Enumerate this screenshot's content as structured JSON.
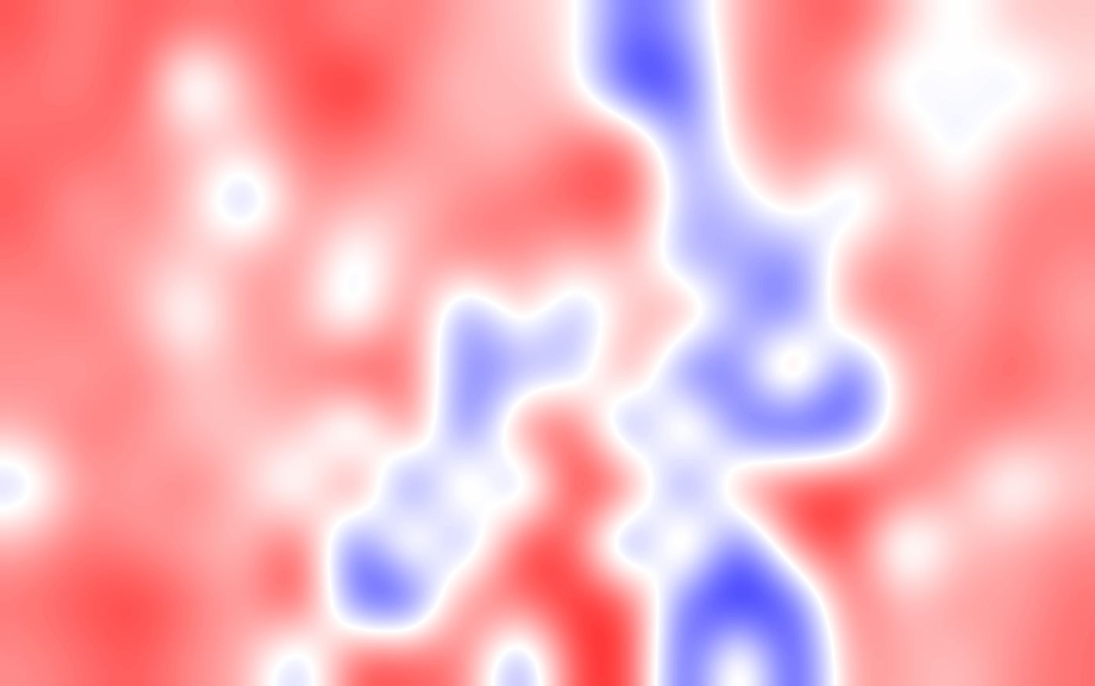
{
  "chart_data": {
    "type": "heatmap",
    "color": "bwr",
    "tick_labels": false,
    "cells": [
      [
        0.6,
        0.4,
        0.6,
        0.5,
        0.5,
        0.6,
        0.4,
        0.5,
        0.3,
        0.2,
        0.1,
        -0.6,
        -0.3,
        0.3,
        0.5,
        0.6,
        0.2,
        -0.1,
        0.2,
        0.2
      ],
      [
        0.5,
        0.4,
        0.7,
        -0.4,
        0.3,
        0.6,
        0.8,
        0.4,
        0.2,
        0.3,
        0.1,
        -0.8,
        -0.7,
        0.4,
        0.5,
        0.3,
        -0.2,
        0.1,
        -0.2,
        0.1
      ],
      [
        0.5,
        0.6,
        0.4,
        0.3,
        0.2,
        0.5,
        0.5,
        0.4,
        0.3,
        0.2,
        0.5,
        0.6,
        -0.5,
        0.2,
        0.5,
        0.4,
        0.2,
        -0.2,
        0.2,
        0.3
      ],
      [
        0.6,
        0.3,
        0.5,
        0.2,
        -0.5,
        0.4,
        0.3,
        0.2,
        0.4,
        0.5,
        0.6,
        0.7,
        -0.3,
        -0.2,
        0.3,
        -0.4,
        0.3,
        0.1,
        0.4,
        0.5
      ],
      [
        0.5,
        0.4,
        0.3,
        0.2,
        0.3,
        0.4,
        -0.2,
        0.3,
        0.5,
        0.4,
        0.2,
        0.3,
        -0.4,
        -0.3,
        -0.5,
        0.3,
        0.4,
        0.2,
        0.5,
        0.4
      ],
      [
        0.4,
        0.5,
        0.3,
        -0.2,
        0.4,
        0.3,
        -0.3,
        0.6,
        -0.6,
        0.3,
        -0.4,
        0.2,
        0.5,
        -0.3,
        -0.6,
        0.4,
        0.5,
        0.3,
        0.5,
        0.3
      ],
      [
        0.4,
        0.3,
        0.5,
        0.2,
        0.3,
        0.4,
        0.8,
        0.5,
        -0.5,
        -0.4,
        -0.3,
        0.6,
        -0.7,
        -0.5,
        0.8,
        -0.8,
        0.3,
        0.4,
        0.6,
        0.4
      ],
      [
        0.3,
        0.5,
        0.4,
        0.2,
        0.2,
        0.3,
        -0.5,
        0.7,
        -0.8,
        0.6,
        0.7,
        -0.8,
        0.6,
        -0.6,
        -0.9,
        -0.7,
        0.3,
        0.5,
        0.4,
        0.3
      ],
      [
        -0.3,
        0.4,
        0.3,
        0.5,
        0.2,
        -0.3,
        0.8,
        -0.9,
        0.6,
        -0.7,
        0.8,
        0.7,
        -0.8,
        0.5,
        0.7,
        0.8,
        0.6,
        0.3,
        -0.2,
        0.2
      ],
      [
        0.3,
        0.5,
        0.4,
        0.3,
        0.2,
        0.7,
        -0.8,
        0.6,
        -0.7,
        0.8,
        0.6,
        -0.9,
        0.7,
        -0.8,
        0.6,
        0.7,
        -0.4,
        0.2,
        0.3,
        0.4
      ],
      [
        0.5,
        0.6,
        0.7,
        0.5,
        0.3,
        0.8,
        -0.7,
        -0.9,
        0.6,
        0.5,
        0.8,
        0.7,
        -0.6,
        -0.9,
        -0.7,
        0.6,
        0.2,
        0.4,
        0.3,
        0.5
      ],
      [
        0.4,
        0.5,
        0.6,
        0.4,
        0.3,
        -0.4,
        0.7,
        0.6,
        0.5,
        -0.6,
        0.7,
        0.8,
        -0.9,
        0.5,
        -0.9,
        0.4,
        0.3,
        0.2,
        0.4,
        0.5
      ]
    ]
  }
}
